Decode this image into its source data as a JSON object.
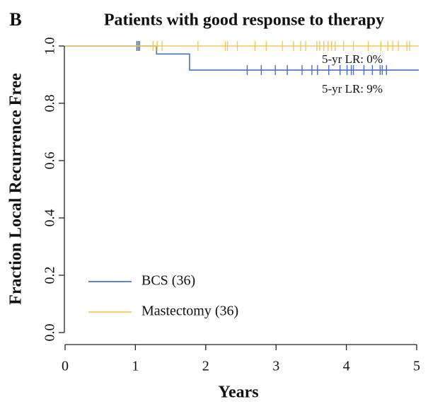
{
  "chart_data": {
    "type": "step",
    "panel_label": "B",
    "title": "Patients with good response to therapy",
    "x_label": "Years",
    "y_label": "Fraction Local Recurrence Free",
    "xlim": [
      0,
      5
    ],
    "ylim": [
      0,
      1
    ],
    "xticks": [
      0,
      1,
      2,
      3,
      4,
      5
    ],
    "yticks": [
      {
        "value": 0,
        "label": "0.0"
      },
      0.2,
      0.4,
      0.6,
      0.8,
      {
        "value": 1,
        "label": "1.0"
      }
    ],
    "legend": "bottomleft",
    "annotations": [
      "5-yr LR: 0%",
      "5-yr LR: 9%"
    ],
    "series": [
      {
        "name": "BCS (36)",
        "color": "#4a6fc4",
        "x": [
          0,
          1.3,
          1.3,
          1.77,
          1.77,
          5.03
        ],
        "values": [
          1,
          1,
          0.972,
          0.972,
          0.916,
          0.916
        ],
        "censored": {
          "x": [
            1.02,
            1.04,
            1.06,
            2.59,
            2.79,
            2.99,
            3.16,
            3.37,
            3.51,
            3.59,
            3.75,
            3.91,
            4.01,
            4.07,
            4.1,
            4.25,
            4.37,
            4.48,
            4.51,
            4.57
          ],
          "values": [
            1,
            1,
            1,
            0.916,
            0.916,
            0.916,
            0.916,
            0.916,
            0.916,
            0.916,
            0.916,
            0.916,
            0.916,
            0.916,
            0.916,
            0.916,
            0.916,
            0.916,
            0.916,
            0.916
          ]
        }
      },
      {
        "name": "Mastectomy (36)",
        "color": "#f5c75a",
        "x": [
          0,
          5.03
        ],
        "values": [
          1,
          1
        ],
        "censored": {
          "x": [
            1.25,
            1.31,
            1.38,
            1.89,
            2.28,
            2.31,
            2.45,
            2.7,
            2.86,
            3.09,
            3.25,
            3.35,
            3.42,
            3.58,
            3.62,
            3.68,
            3.74,
            3.79,
            3.84,
            3.96,
            4.1,
            4.31,
            4.49,
            4.59,
            4.66,
            4.74,
            4.86,
            4.9
          ],
          "values": [
            1,
            1,
            1,
            1,
            1,
            1,
            1,
            1,
            1,
            1,
            1,
            1,
            1,
            1,
            1,
            1,
            1,
            1,
            1,
            1,
            1,
            1,
            1,
            1,
            1,
            1,
            1,
            1
          ]
        }
      }
    ]
  }
}
